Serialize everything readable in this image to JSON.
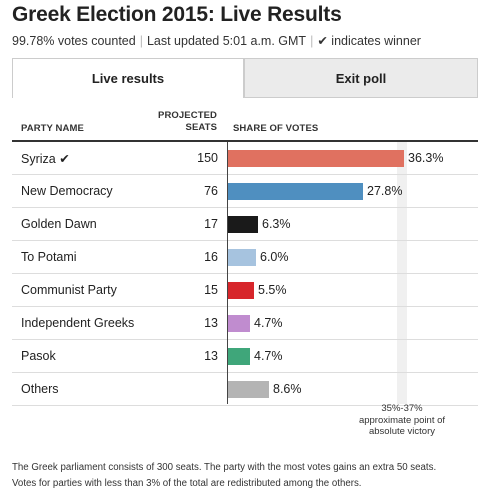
{
  "header": {
    "title": "Greek Election 2015: Live Results",
    "votes_counted": "99.78% votes counted",
    "last_updated": "Last updated 5:01 a.m. GMT",
    "winner_check": "✔",
    "winner_note": "indicates winner"
  },
  "tabs": [
    {
      "label": "Live results",
      "active": true
    },
    {
      "label": "Exit poll",
      "active": false
    }
  ],
  "table": {
    "col_party": "PARTY NAME",
    "col_seats_line1": "PROJECTED",
    "col_seats_line2": "SEATS",
    "col_share": "SHARE OF VOTES",
    "rows": [
      {
        "name": "Syriza ✔",
        "seats": "150",
        "share": 36.3,
        "share_label": "36.3%",
        "color": "#e07160",
        "winner": true
      },
      {
        "name": "New Democracy",
        "seats": "76",
        "share": 27.8,
        "share_label": "27.8%",
        "color": "#4f8fc0"
      },
      {
        "name": "Golden Dawn",
        "seats": "17",
        "share": 6.3,
        "share_label": "6.3%",
        "color": "#1a1a1a"
      },
      {
        "name": "To Potami",
        "seats": "16",
        "share": 6.0,
        "share_label": "6.0%",
        "color": "#a6c3df"
      },
      {
        "name": "Communist Party",
        "seats": "15",
        "share": 5.5,
        "share_label": "5.5%",
        "color": "#d7262b"
      },
      {
        "name": "Independent Greeks",
        "seats": "13",
        "share": 4.7,
        "share_label": "4.7%",
        "color": "#c08ccf"
      },
      {
        "name": "Pasok",
        "seats": "13",
        "share": 4.7,
        "share_label": "4.7%",
        "color": "#3fa67a"
      },
      {
        "name": "Others",
        "seats": "",
        "share": 8.6,
        "share_label": "8.6%",
        "color": "#b4b4b4"
      }
    ]
  },
  "victory_band": {
    "label_line1": "35%-37%",
    "label_line2": "approximate point of",
    "label_line3": "absolute victory",
    "from": 35,
    "to": 37
  },
  "footnote": {
    "line1": "The Greek parliament consists of 300 seats. The party with the most votes gains an extra 50 seats.",
    "line2": "Votes for parties with less than 3% of the total are redistributed among the others."
  }
}
